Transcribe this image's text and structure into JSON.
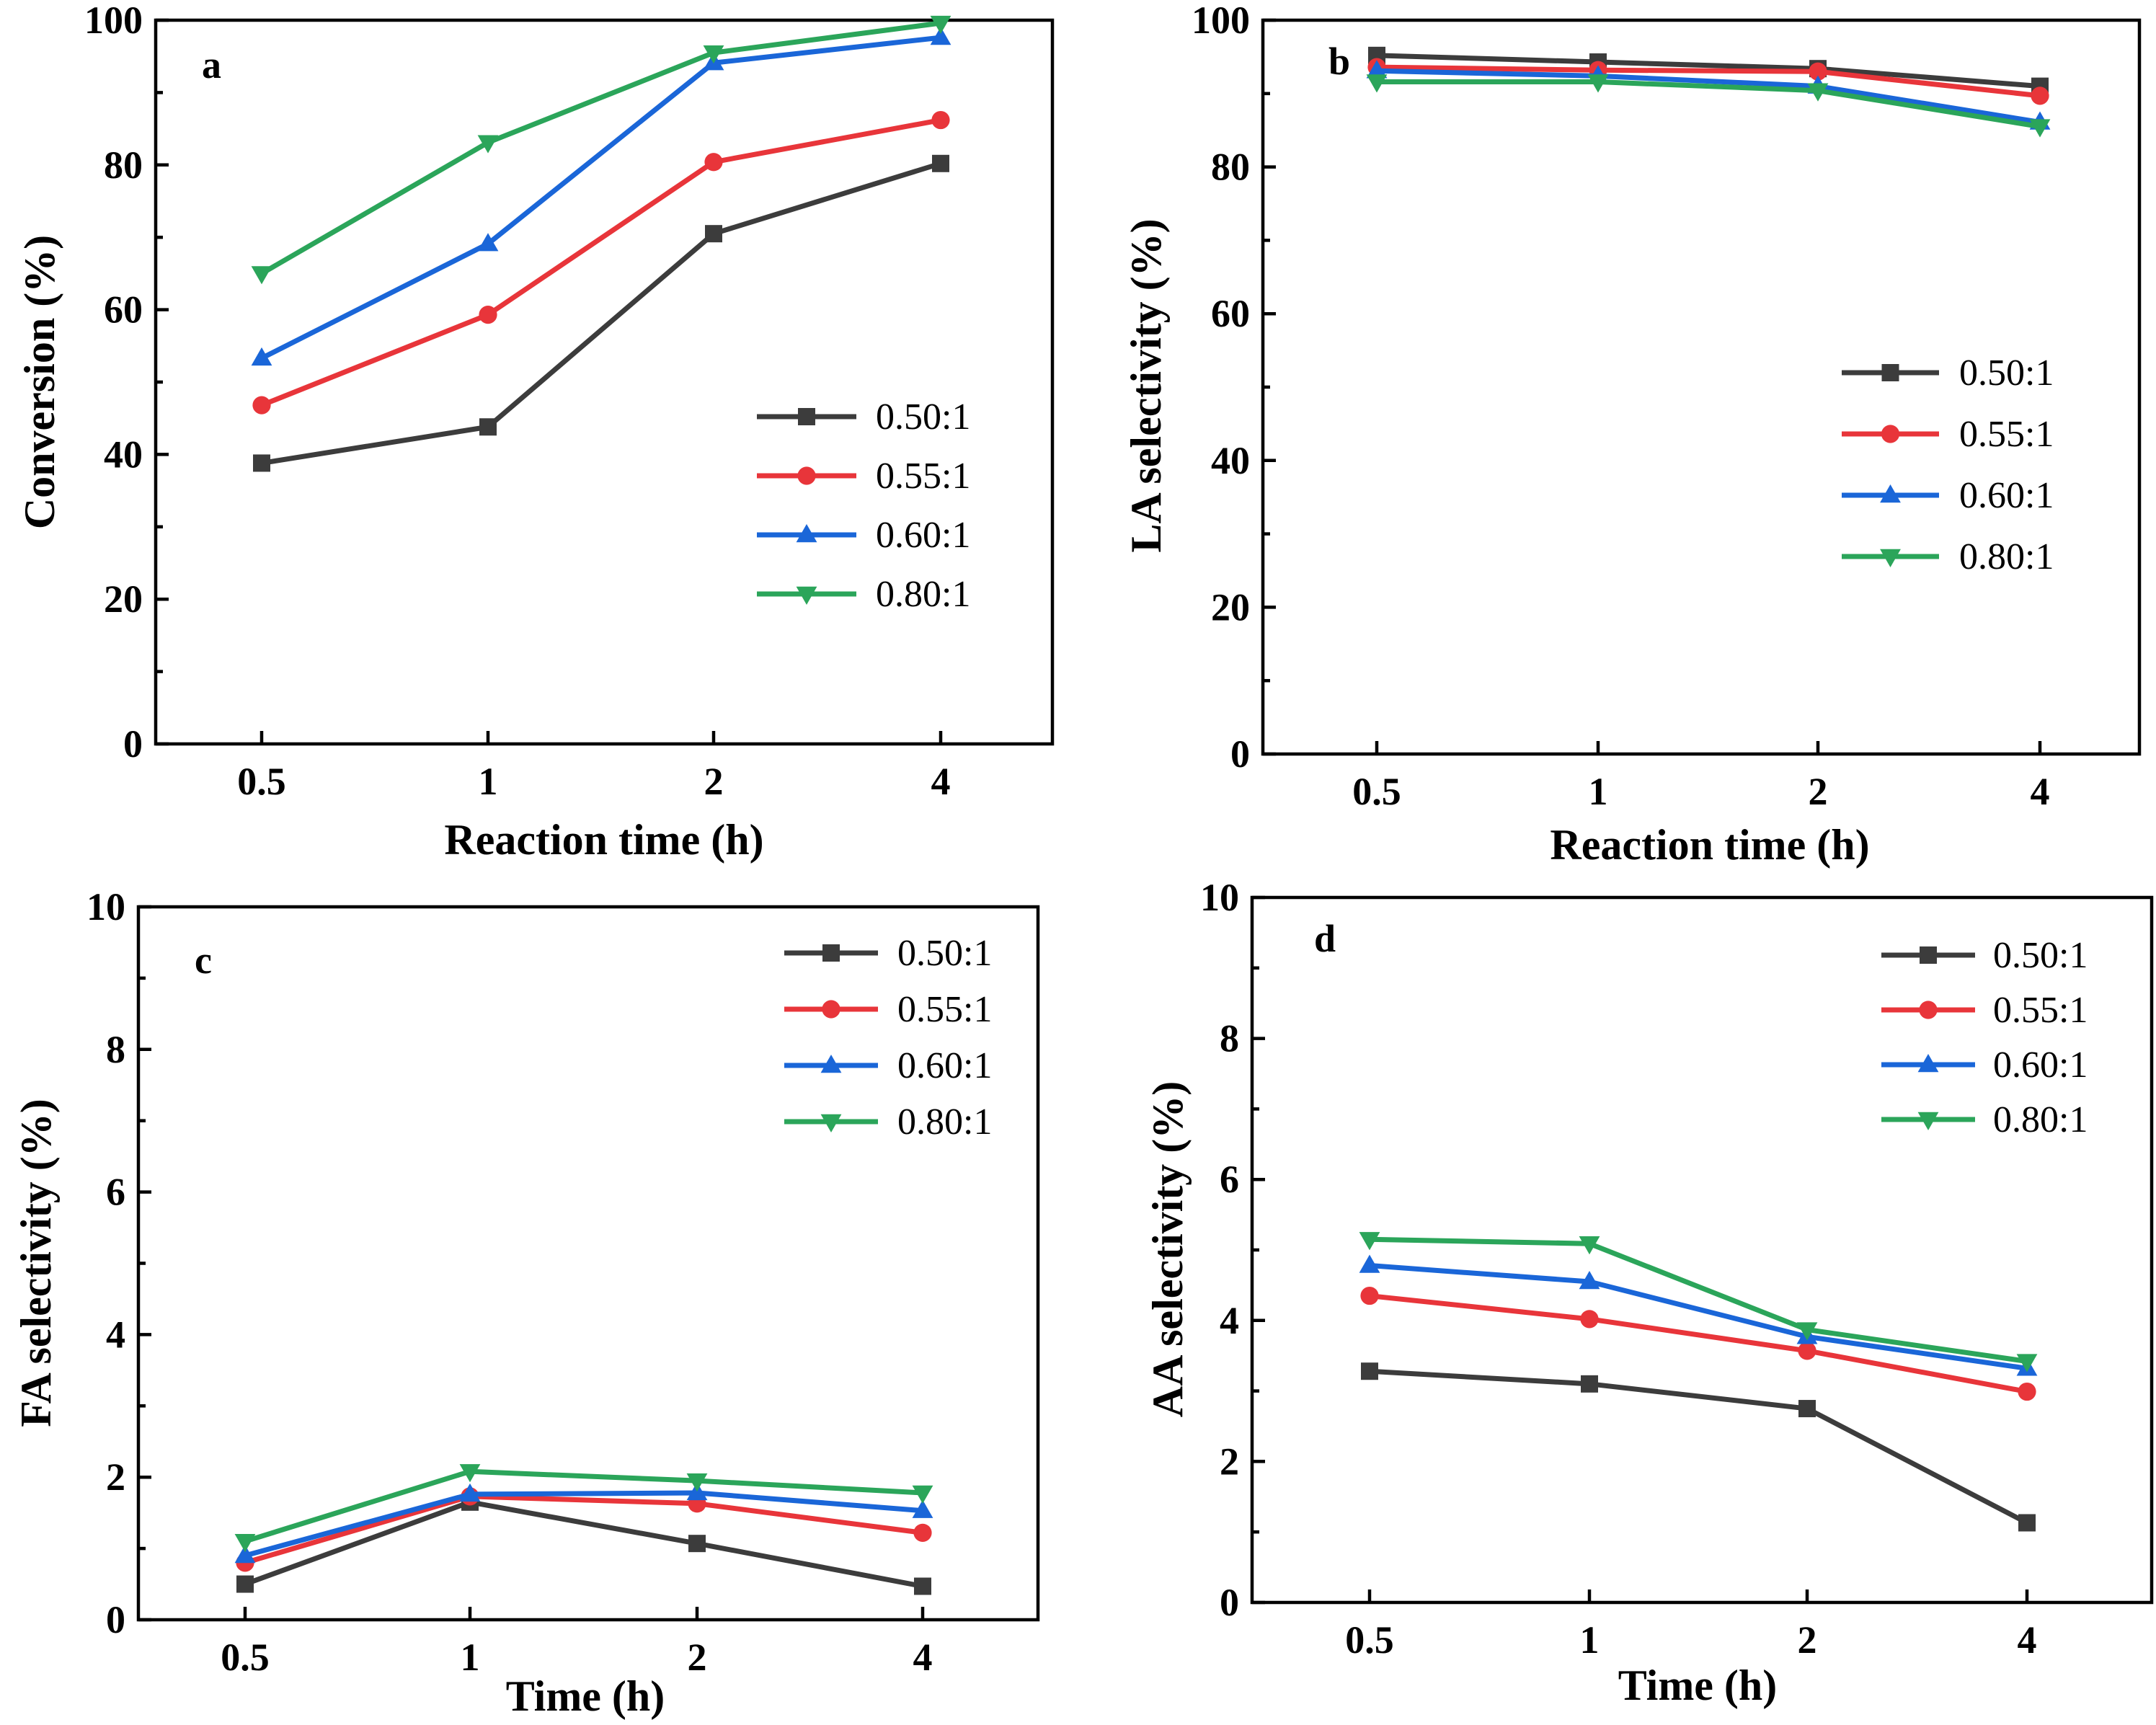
{
  "colors": {
    "0.50:1": "#3c3c3c",
    "0.55:1": "#e8353a",
    "0.60:1": "#1a66d8",
    "0.80:1": "#2ba55a"
  },
  "markers": {
    "0.50:1": "square",
    "0.55:1": "circle",
    "0.60:1": "triangle-up",
    "0.80:1": "triangle-down"
  },
  "chart_data": [
    {
      "type": "line",
      "panel_label": "a",
      "categories": [
        "0.5",
        "1",
        "2",
        "4"
      ],
      "xlabel": "Reaction time (h)",
      "ylabel": "Conversion (%)",
      "ylim": [
        0,
        100
      ],
      "yticks": [
        0,
        20,
        40,
        60,
        80,
        100
      ],
      "ytick_labels": [
        "0",
        "20",
        "40",
        "60",
        "80",
        "100"
      ],
      "legend_position": "center-right",
      "series": [
        {
          "name": "0.50:1",
          "values": [
            38.8,
            43.8,
            70.5,
            80.2
          ]
        },
        {
          "name": "0.55:1",
          "values": [
            46.8,
            59.3,
            80.4,
            86.2
          ]
        },
        {
          "name": "0.60:1",
          "values": [
            53.3,
            69.1,
            94.1,
            97.6
          ]
        },
        {
          "name": "0.80:1",
          "values": [
            65.0,
            83.1,
            95.5,
            99.6
          ]
        }
      ]
    },
    {
      "type": "line",
      "panel_label": "b",
      "categories": [
        "0.5",
        "1",
        "2",
        "4"
      ],
      "xlabel": "Reaction time (h)",
      "ylabel": "LA selectivity (%)",
      "ylim": [
        0,
        100
      ],
      "yticks": [
        0,
        20,
        40,
        60,
        80,
        100
      ],
      "ytick_labels": [
        "0",
        "20",
        "40",
        "60",
        "80",
        "100"
      ],
      "legend_position": "center-right",
      "series": [
        {
          "name": "0.50:1",
          "values": [
            95.2,
            94.3,
            93.4,
            91.0
          ]
        },
        {
          "name": "0.55:1",
          "values": [
            93.6,
            93.2,
            93.0,
            89.7
          ]
        },
        {
          "name": "0.60:1",
          "values": [
            93.1,
            92.4,
            91.0,
            86.1
          ]
        },
        {
          "name": "0.80:1",
          "values": [
            91.6,
            91.6,
            90.4,
            85.5
          ]
        }
      ]
    },
    {
      "type": "line",
      "panel_label": "c",
      "categories": [
        "0.5",
        "1",
        "2",
        "4"
      ],
      "xlabel": "Time (h)",
      "ylabel": "FA selectivity (%)",
      "ylim": [
        0,
        10
      ],
      "yticks": [
        0,
        2,
        4,
        6,
        8,
        10
      ],
      "ytick_labels": [
        "0",
        "2",
        "4",
        "6",
        "8",
        "10"
      ],
      "legend_position": "top-right",
      "series": [
        {
          "name": "0.50:1",
          "values": [
            0.5,
            1.65,
            1.07,
            0.47
          ]
        },
        {
          "name": "0.55:1",
          "values": [
            0.8,
            1.73,
            1.63,
            1.22
          ]
        },
        {
          "name": "0.60:1",
          "values": [
            0.9,
            1.76,
            1.78,
            1.53
          ]
        },
        {
          "name": "0.80:1",
          "values": [
            1.1,
            2.08,
            1.95,
            1.78
          ]
        }
      ]
    },
    {
      "type": "line",
      "panel_label": "d",
      "categories": [
        "0.5",
        "1",
        "2",
        "4"
      ],
      "xlabel": "Time (h)",
      "ylabel": "AA selectivity (%)",
      "ylim": [
        0,
        10
      ],
      "yticks": [
        0,
        2,
        4,
        6,
        8,
        10
      ],
      "ytick_labels": [
        "0",
        "2",
        "4",
        "6",
        "8",
        "10"
      ],
      "legend_position": "top-right",
      "series": [
        {
          "name": "0.50:1",
          "values": [
            3.28,
            3.1,
            2.75,
            1.13
          ]
        },
        {
          "name": "0.55:1",
          "values": [
            4.35,
            4.02,
            3.57,
            2.99
          ]
        },
        {
          "name": "0.60:1",
          "values": [
            4.78,
            4.55,
            3.77,
            3.32
          ]
        },
        {
          "name": "0.80:1",
          "values": [
            5.15,
            5.09,
            3.87,
            3.42
          ]
        }
      ]
    }
  ]
}
